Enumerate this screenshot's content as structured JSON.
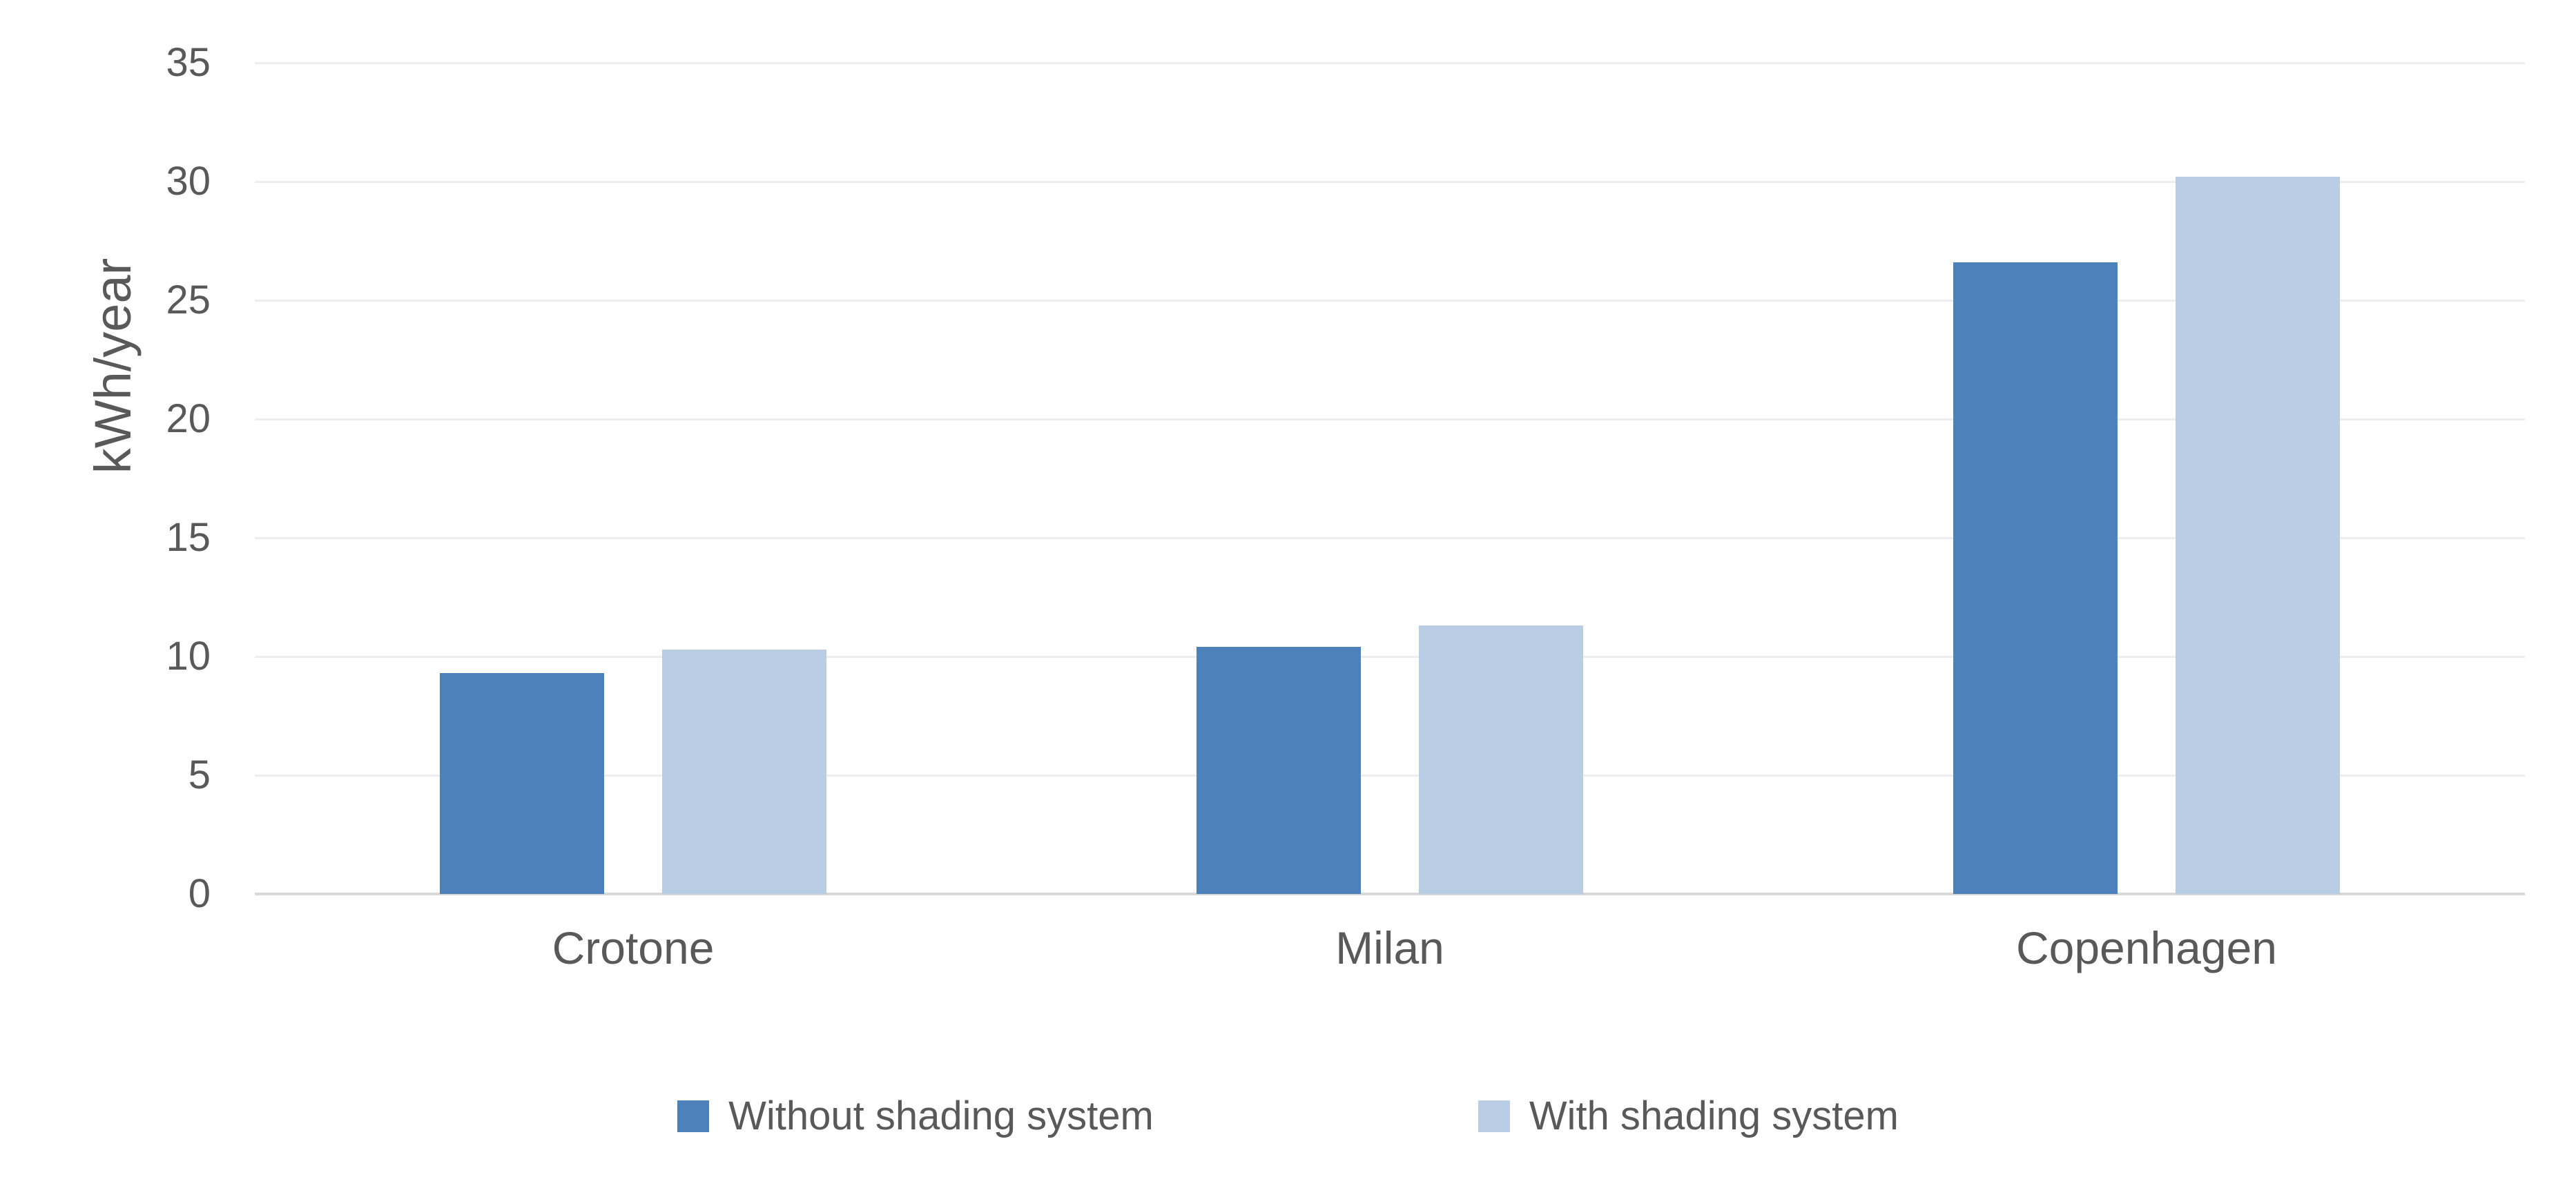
{
  "chart_data": {
    "type": "bar",
    "title": "",
    "categories": [
      "Crotone",
      "Milan",
      "Copenhagen"
    ],
    "series": [
      {
        "name": "Without shading system",
        "color": "#4d81bc",
        "values": [
          9.3,
          10.4,
          26.6
        ]
      },
      {
        "name": "With shading system",
        "color": "#b9cde5",
        "values": [
          10.3,
          11.3,
          30.2
        ]
      }
    ],
    "xlabel": "",
    "ylabel": "kWh/year",
    "ylim": [
      0,
      35
    ],
    "yticks": [
      0,
      5,
      10,
      15,
      20,
      25,
      30,
      35
    ],
    "grid": "horizontal",
    "legend_position": "bottom",
    "colors": {
      "text": "#595959",
      "gridline": "#ededed",
      "axis_line": "#d9d9d9",
      "background": "#ffffff"
    }
  }
}
